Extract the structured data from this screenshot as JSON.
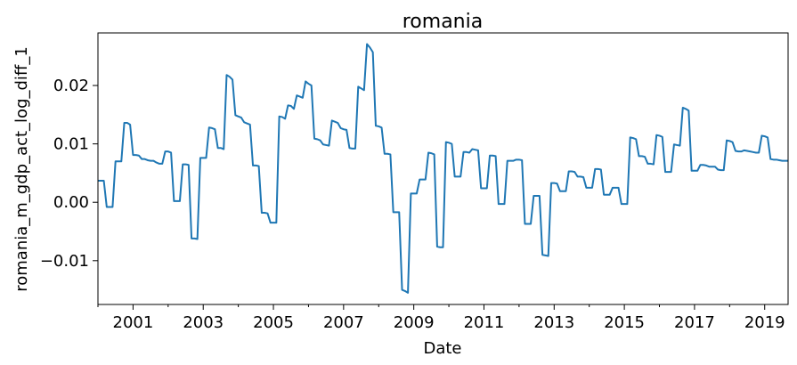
{
  "chart_data": {
    "type": "line",
    "title": "romania",
    "xlabel": "Date",
    "ylabel": "romania_m_gdp_act_log_diff_1",
    "xlim": [
      "2000-01",
      "2019-09"
    ],
    "ylim": [
      -0.0175,
      0.029
    ],
    "x_ticks": [
      "2001",
      "2003",
      "2005",
      "2007",
      "2009",
      "2011",
      "2013",
      "2015",
      "2017",
      "2019"
    ],
    "y_ticks": [
      "0.02",
      "0.01",
      "0.00",
      "−0.01"
    ],
    "y_tick_values": [
      0.02,
      0.01,
      0.0,
      -0.01
    ],
    "grid": false,
    "line_color": "#1f77b4",
    "series": [
      {
        "x": [
          "2000-01",
          "2000-02",
          "2000-03",
          "2000-04",
          "2000-05",
          "2000-06",
          "2000-07",
          "2000-08",
          "2000-09",
          "2000-10",
          "2000-11",
          "2000-12",
          "2001-01",
          "2001-02",
          "2001-03",
          "2001-04",
          "2001-05",
          "2001-06",
          "2001-07",
          "2001-08",
          "2001-09",
          "2001-10",
          "2001-11",
          "2001-12",
          "2002-01",
          "2002-02",
          "2002-03",
          "2002-04",
          "2002-05",
          "2002-06",
          "2002-07",
          "2002-08",
          "2002-09",
          "2002-10",
          "2002-11",
          "2002-12",
          "2003-01",
          "2003-02",
          "2003-03",
          "2003-04",
          "2003-05",
          "2003-06",
          "2003-07",
          "2003-08",
          "2003-09",
          "2003-10",
          "2003-11",
          "2003-12",
          "2004-01",
          "2004-02",
          "2004-03",
          "2004-04",
          "2004-05",
          "2004-06",
          "2004-07",
          "2004-08",
          "2004-09",
          "2004-10",
          "2004-11",
          "2004-12",
          "2005-01",
          "2005-02",
          "2005-03",
          "2005-04",
          "2005-05",
          "2005-06",
          "2005-07",
          "2005-08",
          "2005-09",
          "2005-10",
          "2005-11",
          "2005-12",
          "2006-01",
          "2006-02",
          "2006-03",
          "2006-04",
          "2006-05",
          "2006-06",
          "2006-07",
          "2006-08",
          "2006-09",
          "2006-10",
          "2006-11",
          "2006-12",
          "2007-01",
          "2007-02",
          "2007-03",
          "2007-04",
          "2007-05",
          "2007-06",
          "2007-07",
          "2007-08",
          "2007-09",
          "2007-10",
          "2007-11",
          "2007-12",
          "2008-01",
          "2008-02",
          "2008-03",
          "2008-04",
          "2008-05",
          "2008-06",
          "2008-07",
          "2008-08",
          "2008-09",
          "2008-10",
          "2008-11",
          "2008-12",
          "2009-01",
          "2009-02",
          "2009-03",
          "2009-04",
          "2009-05",
          "2009-06",
          "2009-07",
          "2009-08",
          "2009-09",
          "2009-10",
          "2009-11",
          "2009-12",
          "2010-01",
          "2010-02",
          "2010-03",
          "2010-04",
          "2010-05",
          "2010-06",
          "2010-07",
          "2010-08",
          "2010-09",
          "2010-10",
          "2010-11",
          "2010-12",
          "2011-01",
          "2011-02",
          "2011-03",
          "2011-04",
          "2011-05",
          "2011-06",
          "2011-07",
          "2011-08",
          "2011-09",
          "2011-10",
          "2011-11",
          "2011-12",
          "2012-01",
          "2012-02",
          "2012-03",
          "2012-04",
          "2012-05",
          "2012-06",
          "2012-07",
          "2012-08",
          "2012-09",
          "2012-10",
          "2012-11",
          "2012-12",
          "2013-01",
          "2013-02",
          "2013-03",
          "2013-04",
          "2013-05",
          "2013-06",
          "2013-07",
          "2013-08",
          "2013-09",
          "2013-10",
          "2013-11",
          "2013-12",
          "2014-01",
          "2014-02",
          "2014-03",
          "2014-04",
          "2014-05",
          "2014-06",
          "2014-07",
          "2014-08",
          "2014-09",
          "2014-10",
          "2014-11",
          "2014-12",
          "2015-01",
          "2015-02",
          "2015-03",
          "2015-04",
          "2015-05",
          "2015-06",
          "2015-07",
          "2015-08",
          "2015-09",
          "2015-10",
          "2015-11",
          "2015-12",
          "2016-01",
          "2016-02",
          "2016-03",
          "2016-04",
          "2016-05",
          "2016-06",
          "2016-07",
          "2016-08",
          "2016-09",
          "2016-10",
          "2016-11",
          "2016-12",
          "2017-01",
          "2017-02",
          "2017-03",
          "2017-04",
          "2017-05",
          "2017-06",
          "2017-07",
          "2017-08",
          "2017-09",
          "2017-10",
          "2017-11",
          "2017-12",
          "2018-01",
          "2018-02",
          "2018-03",
          "2018-04",
          "2018-05",
          "2018-06",
          "2018-07",
          "2018-08",
          "2018-09",
          "2018-10",
          "2018-11",
          "2018-12",
          "2019-01",
          "2019-02",
          "2019-03",
          "2019-04",
          "2019-05",
          "2019-06",
          "2019-07",
          "2019-08",
          "2019-09"
        ],
        "values": [
          0.0037,
          0.0037,
          0.0037,
          -0.0008,
          -0.0008,
          -0.0008,
          0.007,
          0.007,
          0.007,
          0.0136,
          0.0136,
          0.0133,
          0.0081,
          0.0081,
          0.008,
          0.0074,
          0.0074,
          0.0072,
          0.0071,
          0.0071,
          0.0068,
          0.0066,
          0.0066,
          0.0087,
          0.0087,
          0.0085,
          0.0002,
          0.0002,
          0.0002,
          0.0065,
          0.0065,
          0.0064,
          -0.0062,
          -0.0062,
          -0.0063,
          0.0076,
          0.0076,
          0.0076,
          0.0128,
          0.0127,
          0.0125,
          0.0093,
          0.0093,
          0.0091,
          0.0218,
          0.0215,
          0.021,
          0.0149,
          0.0147,
          0.0145,
          0.0137,
          0.0135,
          0.0133,
          0.0063,
          0.0063,
          0.0062,
          -0.0018,
          -0.0018,
          -0.0019,
          -0.0035,
          -0.0035,
          -0.0035,
          0.0147,
          0.0146,
          0.0143,
          0.0166,
          0.0165,
          0.016,
          0.0183,
          0.0181,
          0.0179,
          0.0207,
          0.0203,
          0.02,
          0.0109,
          0.0108,
          0.0106,
          0.0099,
          0.0098,
          0.0097,
          0.014,
          0.0138,
          0.0136,
          0.0127,
          0.0125,
          0.0124,
          0.0093,
          0.0092,
          0.0092,
          0.0198,
          0.0195,
          0.0192,
          0.0271,
          0.0265,
          0.0257,
          0.0131,
          0.013,
          0.0128,
          0.0083,
          0.0083,
          0.0082,
          -0.0017,
          -0.0017,
          -0.0017,
          -0.015,
          -0.0152,
          -0.0155,
          0.0015,
          0.0015,
          0.0015,
          0.0039,
          0.0039,
          0.0039,
          0.0085,
          0.0084,
          0.0082,
          -0.0076,
          -0.0077,
          -0.0077,
          0.0103,
          0.0102,
          0.01,
          0.0044,
          0.0044,
          0.0044,
          0.0086,
          0.0086,
          0.0085,
          0.0091,
          0.009,
          0.0089,
          0.0024,
          0.0024,
          0.0024,
          0.008,
          0.008,
          0.0079,
          -0.0003,
          -0.0003,
          -0.0003,
          0.0071,
          0.0071,
          0.0071,
          0.0073,
          0.0073,
          0.0072,
          -0.0037,
          -0.0037,
          -0.0037,
          0.0011,
          0.0011,
          0.0011,
          -0.009,
          -0.0091,
          -0.0092,
          0.0033,
          0.0033,
          0.0032,
          0.0019,
          0.0019,
          0.0019,
          0.0053,
          0.0053,
          0.0052,
          0.0044,
          0.0044,
          0.0043,
          0.0025,
          0.0025,
          0.0025,
          0.0057,
          0.0057,
          0.0056,
          0.0013,
          0.0013,
          0.0013,
          0.0025,
          0.0025,
          0.0025,
          -0.0003,
          -0.0003,
          -0.0003,
          0.0111,
          0.011,
          0.0108,
          0.0079,
          0.0079,
          0.0078,
          0.0066,
          0.0066,
          0.0065,
          0.0115,
          0.0114,
          0.0112,
          0.0052,
          0.0052,
          0.0052,
          0.0099,
          0.0098,
          0.0097,
          0.0162,
          0.016,
          0.0157,
          0.0054,
          0.0054,
          0.0054,
          0.0064,
          0.0064,
          0.0063,
          0.0061,
          0.0061,
          0.0061,
          0.0056,
          0.0055,
          0.0055,
          0.0106,
          0.0105,
          0.0103,
          0.0088,
          0.0087,
          0.0087,
          0.0089,
          0.0088,
          0.0087,
          0.0086,
          0.0085,
          0.0085,
          0.0114,
          0.0113,
          0.0111,
          0.0074,
          0.0073,
          0.0073,
          0.0072,
          0.0071,
          0.0071,
          0.0071
        ]
      }
    ]
  }
}
